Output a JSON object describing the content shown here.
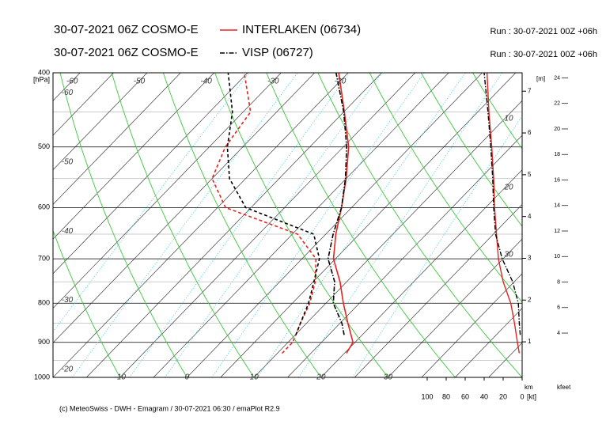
{
  "chart_data": {
    "type": "emagram",
    "footer": "(c) MeteoSwiss - DWH - Emagram / 30-07-2021 06:30 / emaPlot R2.9",
    "ylog": true,
    "ylim": [
      1000,
      400
    ],
    "yticks": [
      400,
      500,
      600,
      700,
      800,
      900,
      1000
    ],
    "minor_yticks": [
      450,
      550,
      650,
      750,
      850,
      950
    ],
    "ylabel": "[hPa]",
    "xlim": [
      -20,
      50
    ],
    "xticks": [
      -75,
      -70,
      -65,
      -60,
      -55,
      -50,
      -45,
      -40,
      -35,
      -30,
      -25,
      -20,
      -15,
      -10,
      -5,
      0,
      5,
      10,
      15,
      20,
      25,
      30,
      35,
      40,
      45
    ],
    "isotherm_labels": {
      "top": [
        -60,
        -50,
        -40,
        -30,
        -20
      ],
      "left": [
        -60,
        -50,
        -40,
        -30,
        -20
      ],
      "bottom": [
        -10,
        0,
        10,
        20,
        30
      ]
    },
    "dry_adiabats": [
      -40,
      -30,
      -20,
      -10,
      0,
      10,
      20,
      30,
      40,
      50,
      60,
      70,
      80
    ],
    "mixing_ratio_lines": [
      0.5,
      1,
      2,
      3,
      5,
      8,
      12,
      20
    ],
    "moist_adiabat_labels": [
      10,
      20,
      30
    ],
    "wind_xlim": [
      0,
      100
    ],
    "wind_xticks": [
      100,
      80,
      60,
      40,
      20,
      0
    ],
    "wind_xlabel": "[kt]",
    "y2lim": [
      0.15,
      7.44
    ],
    "y2ticks": [
      1,
      2,
      3,
      4,
      5,
      6,
      7
    ],
    "y2label": "[m]",
    "y2unit_label": "km",
    "y3lim": [
      0.53,
      24.4
    ],
    "y3ticks": [
      4,
      6,
      8,
      10,
      12,
      14,
      16,
      18,
      20,
      22,
      24
    ],
    "y3unit_label": "kfeet",
    "series": [
      {
        "name": "INTERLAKEN (06734)",
        "model_run": "30-07-2021 06Z COSMO-E",
        "run_info": "Run : 30-07-2021 00Z +06h",
        "color": "#e8231f",
        "line_style": "solid",
        "levels": [
          930,
          900,
          850,
          800,
          750,
          700,
          650,
          600,
          550,
          500,
          450,
          400
        ],
        "temperature": [
          20.3,
          19.7,
          16.2,
          12.6,
          9.0,
          4.7,
          1.5,
          -1.5,
          -5.0,
          -9.2,
          -14.9,
          -21.4
        ],
        "dewpoint": [
          10.7,
          10.7,
          9.1,
          7.6,
          5.3,
          2.1,
          -4.2,
          -18.8,
          -25.0,
          -27.6,
          -28.9,
          -35.5
        ],
        "wind_speed": [
          3,
          5,
          8,
          12,
          20,
          25,
          27,
          29,
          30,
          32,
          35,
          37
        ]
      },
      {
        "name": "VISP (06727)",
        "model_run": "30-07-2021 06Z COSMO-E",
        "run_info": "Run : 30-07-2021 00Z +06h",
        "color": "#000000",
        "line_style": "dashdot",
        "levels": [
          880,
          850,
          800,
          750,
          700,
          650,
          600,
          550,
          500,
          450,
          400
        ],
        "temperature": [
          17.3,
          15.3,
          11.1,
          8.2,
          3.9,
          1.1,
          -1.5,
          -5.1,
          -9.5,
          -15.0,
          -21.8
        ],
        "dewpoint": [
          10.1,
          9.1,
          7.4,
          5.1,
          2.6,
          -1.8,
          -15.8,
          -22.4,
          -27.3,
          -31.6,
          -37.9
        ],
        "wind_speed": [
          2,
          3,
          4,
          10,
          21,
          28,
          30,
          31,
          33,
          36,
          40
        ]
      }
    ]
  }
}
